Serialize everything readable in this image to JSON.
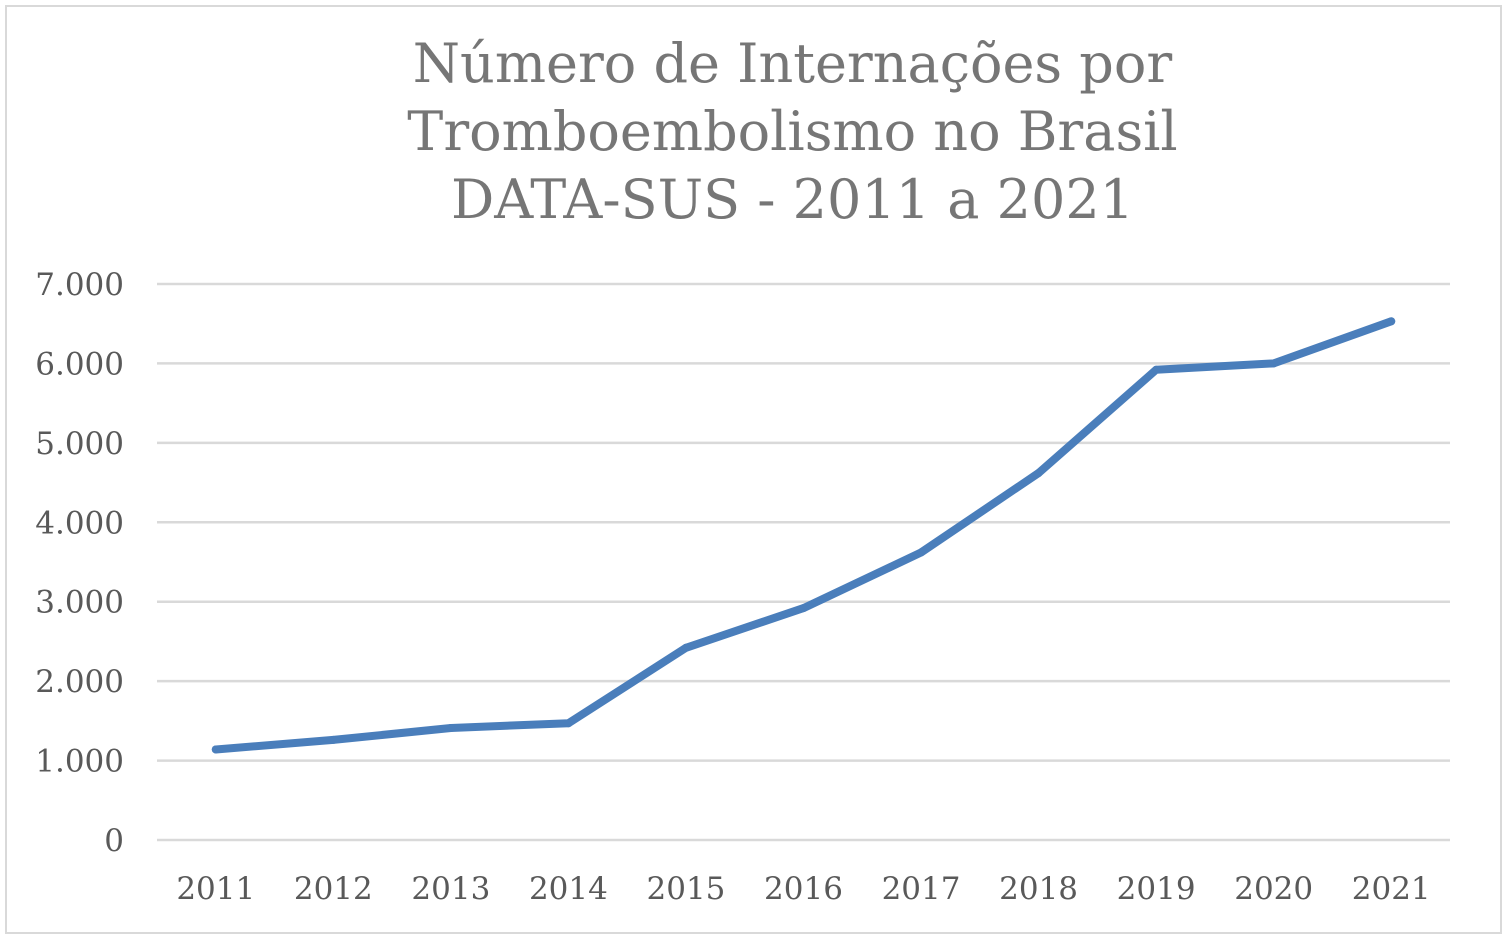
{
  "chart_data": {
    "type": "line",
    "title_lines": [
      "Número de Internações por",
      "Tromboembolismo no Brasil",
      "DATA-SUS - 2011 a 2021"
    ],
    "xlabel": "",
    "ylabel": "",
    "categories": [
      "2011",
      "2012",
      "2013",
      "2014",
      "2015",
      "2016",
      "2017",
      "2018",
      "2019",
      "2020",
      "2021"
    ],
    "series": [
      {
        "values": [
          1140,
          1260,
          1410,
          1470,
          2420,
          2920,
          3620,
          4620,
          5920,
          6000,
          6530
        ],
        "color": "#4a7ebb"
      }
    ],
    "ylim": [
      0,
      7000
    ],
    "yticks": [
      0,
      1000,
      2000,
      3000,
      4000,
      5000,
      6000,
      7000
    ],
    "ytick_labels": [
      "0",
      "1.000",
      "2.000",
      "3.000",
      "4.000",
      "5.000",
      "6.000",
      "7.000"
    ],
    "grid": true,
    "gridline_color": "#d9d9d9",
    "axis_text_color": "#595959",
    "title_color": "#767676",
    "legend": "none"
  }
}
